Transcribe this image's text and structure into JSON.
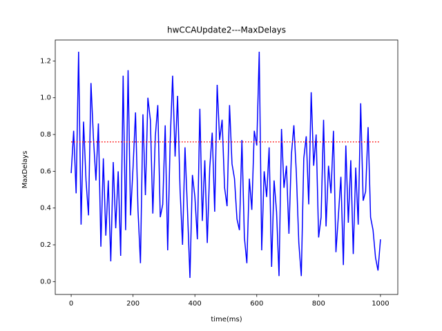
{
  "chart_data": {
    "type": "line",
    "title": "hwCCAUpdate2---MaxDelays",
    "x_label": "time(ms)",
    "y_label": "MaxDelays",
    "x": [
      0,
      8,
      16,
      24,
      32,
      40,
      48,
      56,
      64,
      72,
      80,
      88,
      96,
      104,
      112,
      120,
      128,
      136,
      144,
      152,
      160,
      168,
      176,
      184,
      192,
      200,
      208,
      216,
      224,
      232,
      240,
      248,
      256,
      264,
      272,
      280,
      288,
      296,
      304,
      312,
      320,
      328,
      336,
      344,
      352,
      360,
      368,
      376,
      384,
      392,
      400,
      408,
      416,
      424,
      432,
      440,
      448,
      456,
      464,
      472,
      480,
      488,
      496,
      504,
      512,
      520,
      528,
      536,
      544,
      552,
      560,
      568,
      576,
      584,
      592,
      600,
      608,
      616,
      624,
      632,
      640,
      648,
      656,
      664,
      672,
      680,
      688,
      696,
      704,
      712,
      720,
      728,
      736,
      744,
      752,
      760,
      768,
      776,
      784,
      792,
      800,
      808,
      816,
      824,
      832,
      840,
      848,
      856,
      864,
      872,
      880,
      888,
      896,
      904,
      912,
      920,
      928,
      936,
      944,
      952,
      960,
      968,
      976,
      984,
      992,
      1000
    ],
    "series": [
      {
        "name": "MaxDelays",
        "color": "#0000ff",
        "values": [
          0.59,
          0.82,
          0.48,
          1.25,
          0.31,
          0.87,
          0.55,
          0.36,
          1.08,
          0.78,
          0.55,
          0.86,
          0.19,
          0.67,
          0.25,
          0.55,
          0.11,
          0.65,
          0.29,
          0.6,
          0.14,
          1.12,
          0.28,
          1.15,
          0.36,
          0.62,
          0.92,
          0.39,
          0.1,
          0.91,
          0.47,
          1.0,
          0.88,
          0.37,
          0.79,
          0.96,
          0.35,
          0.42,
          0.85,
          0.17,
          0.76,
          1.12,
          0.68,
          1.01,
          0.5,
          0.2,
          0.73,
          0.39,
          0.02,
          0.58,
          0.46,
          0.23,
          0.94,
          0.33,
          0.66,
          0.21,
          0.62,
          0.81,
          0.38,
          1.07,
          0.77,
          0.88,
          0.51,
          0.41,
          0.96,
          0.64,
          0.56,
          0.34,
          0.28,
          0.77,
          0.24,
          0.1,
          0.56,
          0.39,
          0.82,
          0.74,
          1.25,
          0.17,
          0.6,
          0.46,
          0.73,
          0.08,
          0.55,
          0.38,
          0.03,
          0.83,
          0.51,
          0.63,
          0.26,
          0.69,
          0.85,
          0.59,
          0.21,
          0.03,
          0.67,
          0.79,
          0.42,
          1.03,
          0.63,
          0.8,
          0.24,
          0.35,
          0.88,
          0.3,
          0.63,
          0.48,
          0.82,
          0.16,
          0.36,
          0.57,
          0.09,
          0.74,
          0.32,
          0.66,
          0.15,
          0.62,
          0.31,
          0.97,
          0.44,
          0.49,
          0.84,
          0.35,
          0.28,
          0.13,
          0.06,
          0.23
        ]
      }
    ],
    "reference_line": {
      "y": 0.76,
      "x": [
        0,
        1000
      ],
      "color": "#ff0000"
    },
    "xlim": [
      -51.5,
      1056
    ],
    "ylim": [
      -0.07,
      1.314
    ],
    "xticks": [
      0,
      200,
      400,
      600,
      800,
      1000
    ],
    "yticks": [
      {
        "value": 0,
        "label": "0.0"
      },
      0.2,
      0.4,
      0.6,
      0.8,
      {
        "value": 1,
        "label": "1.0"
      },
      1.2
    ]
  }
}
